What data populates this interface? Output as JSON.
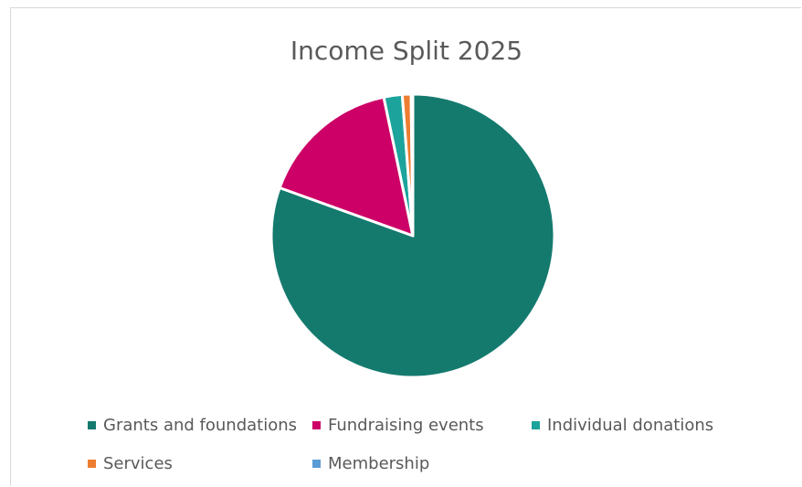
{
  "chart_data": {
    "type": "pie",
    "title": "Income Split 2025",
    "categories": [
      "Grants and foundations",
      "Fundraising events",
      "Individual donations",
      "Services",
      "Membership"
    ],
    "values": [
      80.5,
      16.2,
      2.1,
      1.0,
      0.2
    ],
    "colors": [
      "#147a6e",
      "#cc0066",
      "#1ba39c",
      "#ed7d31",
      "#5b9bd5"
    ],
    "legend_position": "bottom"
  }
}
